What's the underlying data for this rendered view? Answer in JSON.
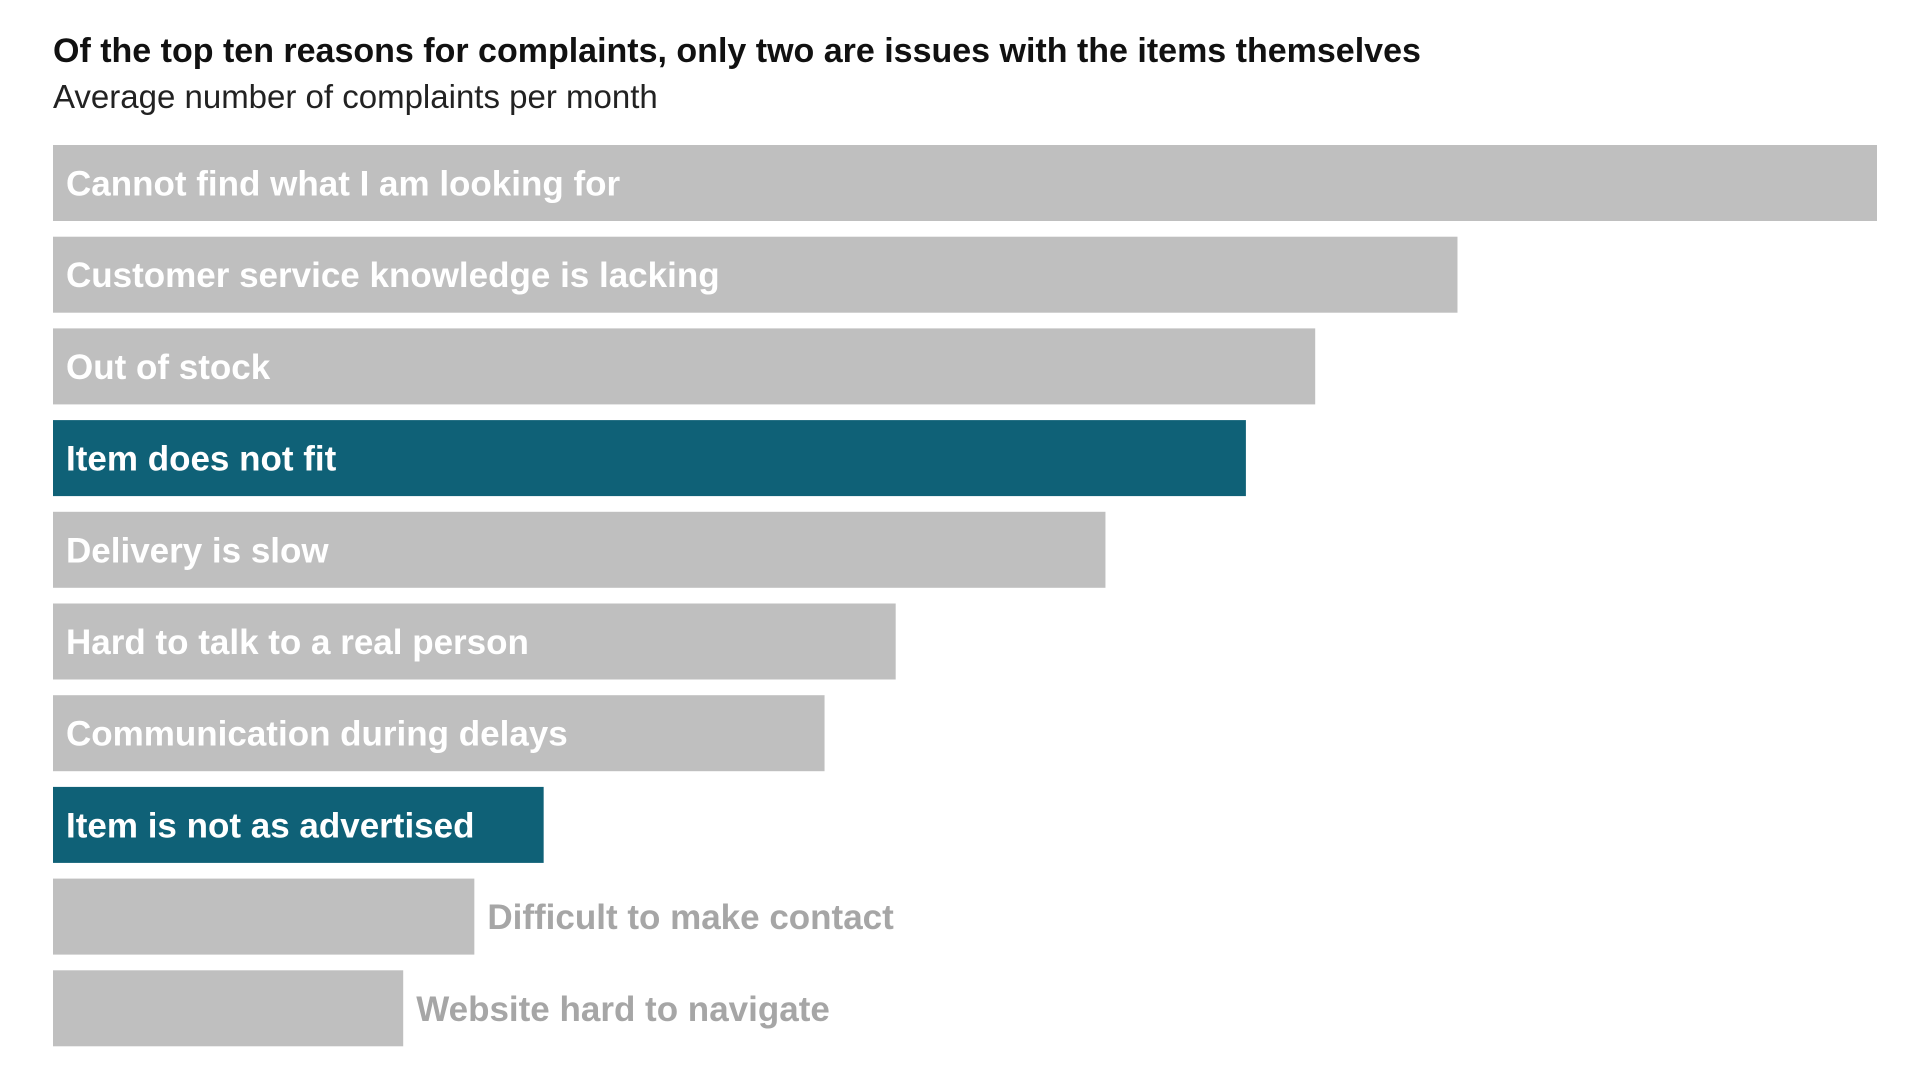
{
  "chart_data": {
    "type": "bar",
    "orientation": "horizontal",
    "title": "Of the top ten reasons for complaints, only two are issues with the items themselves",
    "subtitle": "Average number of complaints per month",
    "xlabel": "",
    "ylabel": "",
    "categories": [
      "Cannot find what I am looking for",
      "Customer service knowledge is lacking",
      "Out of stock",
      "Item does not fit",
      "Delivery is slow",
      "Hard to talk to a real person",
      "Communication during delays",
      "Item is not as advertised",
      "Difficult to make contact",
      "Website hard to navigate"
    ],
    "values": [
      100,
      77,
      69.2,
      65.4,
      57.7,
      46.2,
      42.3,
      26.9,
      23.1,
      19.2
    ],
    "highlighted": [
      false,
      false,
      false,
      true,
      false,
      false,
      false,
      true,
      false,
      false
    ],
    "xlim": [
      0,
      100
    ],
    "grid": false,
    "legend": "none",
    "colors": {
      "default_bar": "#bfbfbf",
      "highlight_bar": "#0f6177",
      "label_inside": "#ffffff",
      "label_outside": "#a6a6a6"
    }
  }
}
